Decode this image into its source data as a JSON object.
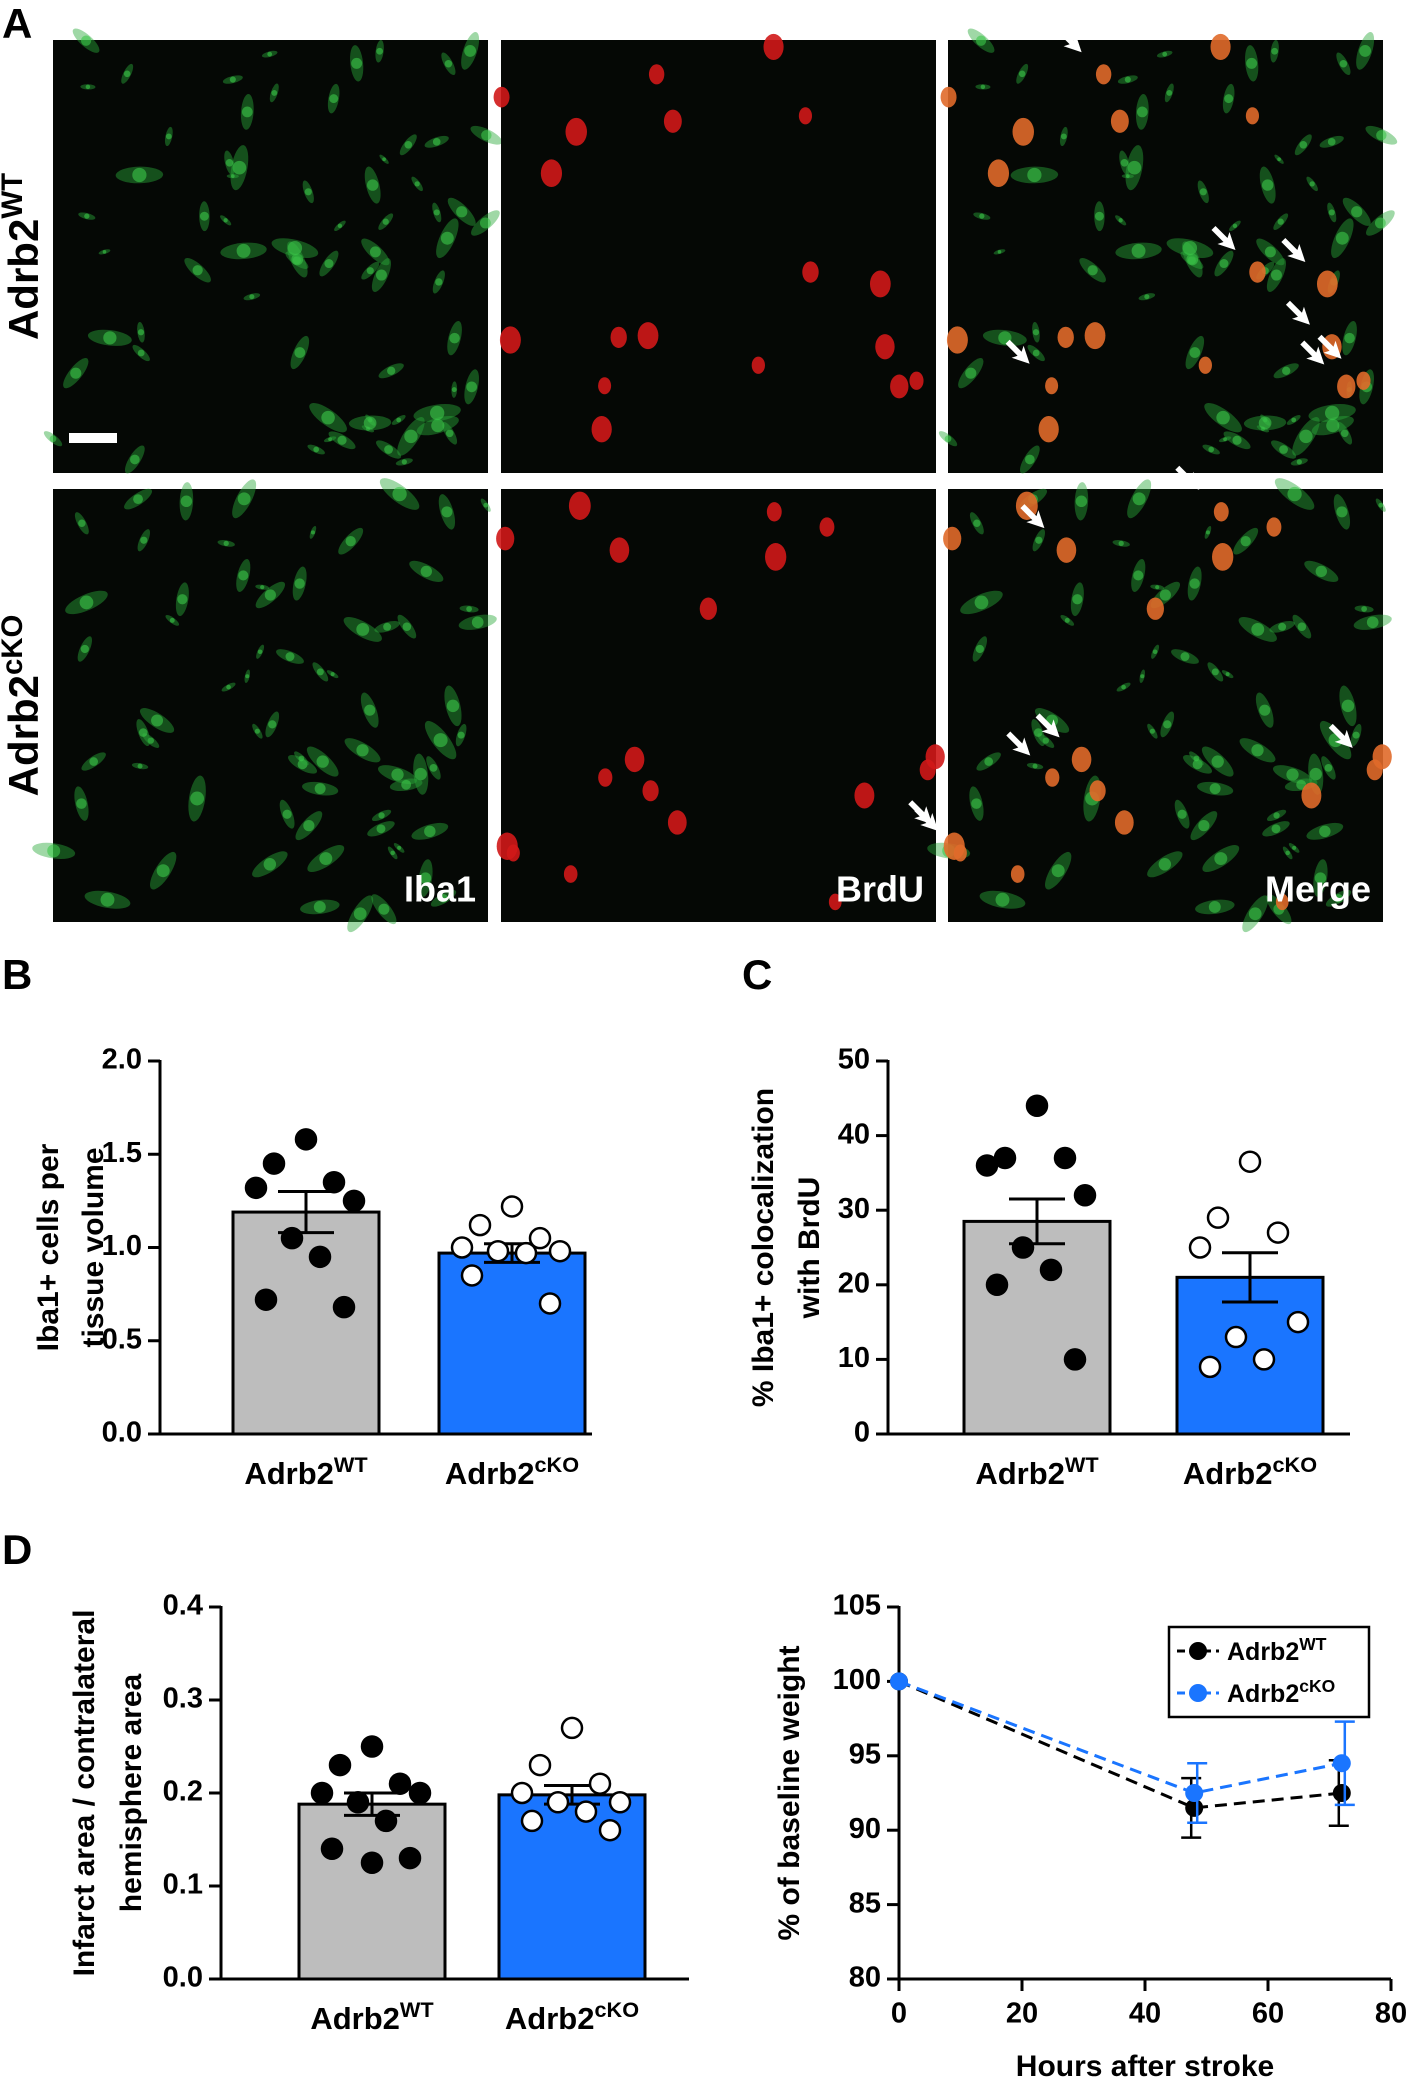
{
  "figure": {
    "panel_labels": [
      "A",
      "B",
      "C",
      "D"
    ],
    "row_labels": [
      "Adrb2WT",
      "Adrb2cKO"
    ],
    "channel_labels": [
      "Iba1",
      "BrdU",
      "Merge"
    ]
  },
  "chart_data": [
    {
      "type": "bar",
      "ylabel": [
        "Iba1+ cells per",
        "tissue volume"
      ],
      "categories": [
        "Adrb2WT",
        "Adrb2cKO"
      ],
      "values": [
        1.19,
        0.97
      ],
      "errors": [
        0.11,
        0.05
      ],
      "colors": [
        "#bdbdbd",
        "#1a75ff"
      ],
      "points": [
        [
          1.58,
          1.45,
          1.35,
          1.32,
          1.25,
          1.05,
          0.95,
          0.72,
          0.68
        ],
        [
          1.22,
          1.12,
          1.05,
          1.0,
          0.98,
          0.98,
          0.97,
          0.85,
          0.7
        ]
      ],
      "point_colors": [
        "#000000",
        "#ffffff"
      ],
      "ylim": [
        0,
        2
      ],
      "yticks": [
        {
          "value": 0,
          "label": "0.0"
        },
        0.5,
        {
          "value": 1,
          "label": "1.0"
        },
        1.5,
        {
          "value": 2,
          "label": "2.0"
        }
      ]
    },
    {
      "type": "bar",
      "ylabel": [
        "% Iba1+ colocalization",
        "with BrdU"
      ],
      "categories": [
        "Adrb2WT",
        "Adrb2cKO"
      ],
      "values": [
        28.5,
        21
      ],
      "errors": [
        3,
        3.3
      ],
      "colors": [
        "#bdbdbd",
        "#1a75ff"
      ],
      "points": [
        [
          44,
          37,
          37,
          36,
          32,
          25,
          22,
          20,
          10
        ],
        [
          36.5,
          29,
          27,
          25,
          15,
          13,
          10,
          9
        ]
      ],
      "point_colors": [
        "#000000",
        "#ffffff"
      ],
      "ylim": [
        0,
        50
      ],
      "yticks": [
        0,
        10,
        20,
        30,
        40,
        50
      ]
    },
    {
      "type": "bar",
      "ylabel": [
        "Infarct area / contralateral",
        "hemisphere area"
      ],
      "categories": [
        "Adrb2WT",
        "Adrb2cKO"
      ],
      "values": [
        0.188,
        0.198
      ],
      "errors": [
        0.012,
        0.01
      ],
      "colors": [
        "#bdbdbd",
        "#1a75ff"
      ],
      "points": [
        [
          0.25,
          0.23,
          0.21,
          0.2,
          0.2,
          0.19,
          0.17,
          0.14,
          0.13,
          0.125
        ],
        [
          0.27,
          0.23,
          0.21,
          0.2,
          0.19,
          0.19,
          0.18,
          0.17,
          0.16
        ]
      ],
      "point_colors": [
        "#000000",
        "#ffffff"
      ],
      "ylim": [
        0,
        0.4
      ],
      "yticks": [
        {
          "value": 0,
          "label": "0.0"
        },
        0.1,
        0.2,
        0.3,
        0.4
      ]
    },
    {
      "type": "line",
      "ylabel": [
        "% of baseline weight"
      ],
      "xlabel": "Hours after stroke",
      "x": [
        0,
        48,
        72
      ],
      "series": [
        {
          "name": "Adrb2WT",
          "color": "#000000",
          "values": [
            100,
            91.5,
            92.5
          ],
          "errors": [
            0,
            2,
            2.2
          ]
        },
        {
          "name": "Adrb2cKO",
          "color": "#1a75ff",
          "values": [
            100,
            92.5,
            94.5
          ],
          "errors": [
            0,
            2,
            2.8
          ]
        }
      ],
      "xlim": [
        0,
        80
      ],
      "xticks": [
        0,
        20,
        40,
        60,
        80
      ],
      "ylim": [
        80,
        105
      ],
      "yticks": [
        80,
        85,
        90,
        95,
        100,
        105
      ],
      "legend": "upper right"
    }
  ]
}
